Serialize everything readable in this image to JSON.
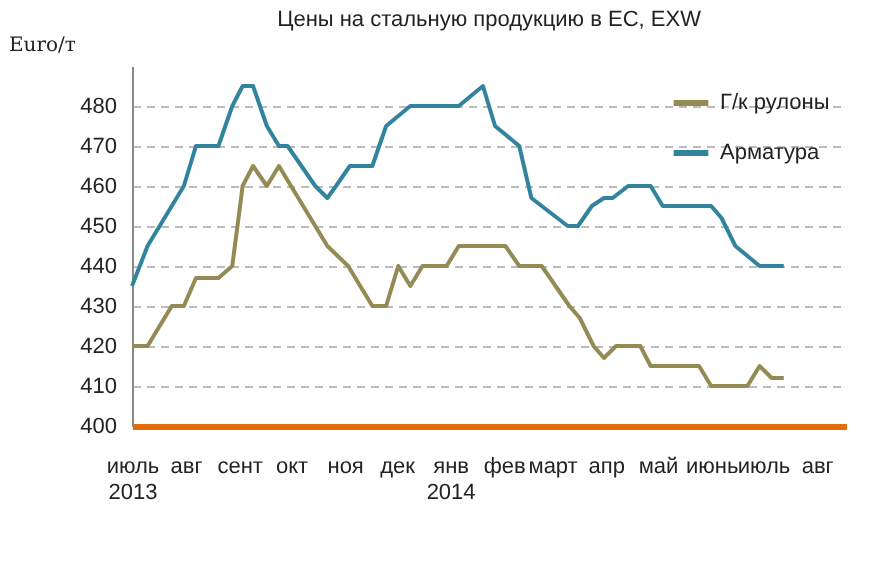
{
  "chart_data": {
    "type": "line",
    "title": "Цены на стальную продукцию в ЕС, EXW",
    "ylabel": "Euro/т",
    "xlim": [
      "2013-07-01",
      "2014-08-18"
    ],
    "xticks": [
      {
        "value": "2013-07-01",
        "label": "июль\n2013"
      },
      {
        "value": "2013-08-01",
        "label": "авг"
      },
      {
        "value": "2013-09-01",
        "label": "сент"
      },
      {
        "value": "2013-10-01",
        "label": "окт"
      },
      {
        "value": "2013-11-01",
        "label": "ноя"
      },
      {
        "value": "2013-12-01",
        "label": "дек"
      },
      {
        "value": "2014-01-01",
        "label": "янв\n2014"
      },
      {
        "value": "2014-02-01",
        "label": "фев"
      },
      {
        "value": "2014-03-01",
        "label": "март"
      },
      {
        "value": "2014-04-01",
        "label": "апр"
      },
      {
        "value": "2014-05-01",
        "label": "май"
      },
      {
        "value": "2014-06-01",
        "label": "июнь"
      },
      {
        "value": "2014-07-01",
        "label": "июль"
      },
      {
        "value": "2014-08-01",
        "label": "авг"
      }
    ],
    "ylim": [
      400,
      490
    ],
    "yticks": [
      400,
      410,
      420,
      430,
      440,
      450,
      460,
      470,
      480
    ],
    "grid": "y",
    "legend": "top right",
    "line_style": "solid",
    "series": [
      {
        "name": "Г/к рулоны",
        "color": "#948a54",
        "x": [
          "2013-07-01",
          "2013-07-10",
          "2013-07-24",
          "2013-07-31",
          "2013-08-07",
          "2013-08-20",
          "2013-08-28",
          "2013-09-03",
          "2013-09-09",
          "2013-09-17",
          "2013-09-24",
          "2013-10-22",
          "2013-11-03",
          "2013-11-17",
          "2013-11-25",
          "2013-12-02",
          "2013-12-09",
          "2013-12-16",
          "2013-12-30",
          "2014-01-06",
          "2014-02-02",
          "2014-02-10",
          "2014-02-23",
          "2014-03-11",
          "2014-03-17",
          "2014-03-25",
          "2014-03-31",
          "2014-04-07",
          "2014-04-21",
          "2014-04-27",
          "2014-05-25",
          "2014-06-01",
          "2014-06-22",
          "2014-06-29",
          "2014-07-06",
          "2014-07-13"
        ],
        "values": [
          420,
          420,
          430,
          430,
          437,
          437,
          440,
          460,
          465,
          460,
          465,
          445,
          440,
          430,
          430,
          440,
          435,
          440,
          440,
          445,
          445,
          440,
          440,
          430,
          427,
          420,
          417,
          420,
          420,
          415,
          415,
          410,
          410,
          415,
          412,
          412
        ]
      },
      {
        "name": "Арматура",
        "color": "#31849b",
        "x": [
          "2013-07-01",
          "2013-07-10",
          "2013-07-31",
          "2013-08-07",
          "2013-08-20",
          "2013-08-28",
          "2013-09-03",
          "2013-09-09",
          "2013-09-17",
          "2013-09-24",
          "2013-09-29",
          "2013-10-15",
          "2013-10-22",
          "2013-10-27",
          "2013-11-04",
          "2013-11-17",
          "2013-11-25",
          "2013-12-09",
          "2013-12-23",
          "2014-01-06",
          "2014-01-20",
          "2014-01-27",
          "2014-02-10",
          "2014-02-17",
          "2014-03-10",
          "2014-03-16",
          "2014-03-24",
          "2014-03-31",
          "2014-04-05",
          "2014-04-14",
          "2014-04-27",
          "2014-05-04",
          "2014-06-01",
          "2014-06-07",
          "2014-06-15",
          "2014-06-29",
          "2014-07-13"
        ],
        "values": [
          435,
          445,
          460,
          470,
          470,
          480,
          485,
          485,
          475,
          470,
          470,
          460,
          457,
          460,
          465,
          465,
          475,
          480,
          480,
          480,
          485,
          475,
          470,
          457,
          450,
          450,
          455,
          457,
          457,
          460,
          460,
          455,
          455,
          452,
          445,
          440,
          440
        ]
      }
    ]
  }
}
